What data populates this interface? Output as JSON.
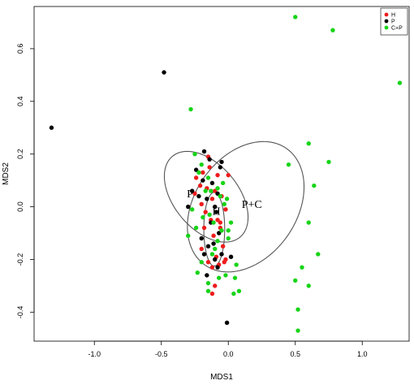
{
  "chart_data": {
    "type": "scatter",
    "xlabel": "MDS1",
    "ylabel": "MDS2",
    "xlim": [
      -1.45,
      1.35
    ],
    "ylim": [
      -0.51,
      0.76
    ],
    "x_ticks": [
      -1.0,
      -0.5,
      0.0,
      0.5,
      1.0
    ],
    "x_tick_labels": [
      "-1.0",
      "-0.5",
      "0.0",
      "0.5",
      "1.0"
    ],
    "y_ticks": [
      -0.4,
      -0.2,
      0.0,
      0.2,
      0.4,
      0.6
    ],
    "y_tick_labels": [
      "-0.4",
      "-0.2",
      "0.0",
      "0.2",
      "0.4",
      "0.6"
    ],
    "grid": false,
    "legend_position": "top-right",
    "series": [
      {
        "name": "H",
        "color": "#ee1c1c",
        "points": [
          [
            -0.24,
            0.11
          ],
          [
            -0.21,
            0.08
          ],
          [
            -0.19,
            0.13
          ],
          [
            -0.16,
            0.07
          ],
          [
            -0.14,
            0.15
          ],
          [
            -0.12,
            0.03
          ],
          [
            -0.1,
            0.06
          ],
          [
            -0.08,
            0.12
          ],
          [
            -0.25,
            0.05
          ],
          [
            -0.2,
            0.01
          ],
          [
            -0.17,
            -0.02
          ],
          [
            -0.13,
            -0.05
          ],
          [
            -0.15,
            0.19
          ],
          [
            -0.05,
            0.04
          ],
          [
            -0.02,
            -0.01
          ],
          [
            0.0,
            0.12
          ],
          [
            -0.11,
            -0.11
          ],
          [
            -0.06,
            -0.08
          ],
          [
            -0.04,
            -0.15
          ],
          [
            -0.09,
            -0.19
          ],
          [
            -0.2,
            -0.16
          ],
          [
            -0.15,
            -0.21
          ],
          [
            -0.12,
            -0.23
          ],
          [
            -0.07,
            -0.22
          ],
          [
            -0.1,
            -0.3
          ],
          [
            -0.03,
            -0.21
          ],
          [
            -0.06,
            -0.06
          ],
          [
            -0.18,
            -0.08
          ],
          [
            -0.02,
            -0.2
          ],
          [
            -0.08,
            -0.05
          ],
          [
            -0.12,
            -0.33
          ]
        ]
      },
      {
        "name": "P",
        "color": "#000000",
        "points": [
          [
            -1.32,
            0.3
          ],
          [
            -0.48,
            0.51
          ],
          [
            -0.3,
            0.0
          ],
          [
            -0.27,
            0.06
          ],
          [
            -0.24,
            0.14
          ],
          [
            -0.22,
            0.04
          ],
          [
            -0.19,
            0.1
          ],
          [
            -0.18,
            0.21
          ],
          [
            -0.16,
            0.03
          ],
          [
            -0.14,
            0.18
          ],
          [
            -0.12,
            0.09
          ],
          [
            -0.1,
            0.0
          ],
          [
            -0.08,
            0.05
          ],
          [
            -0.06,
            0.15
          ],
          [
            -0.05,
            0.17
          ],
          [
            -0.09,
            -0.02
          ],
          [
            -0.07,
            -0.1
          ],
          [
            -0.11,
            -0.14
          ],
          [
            -0.13,
            -0.06
          ],
          [
            -0.1,
            -0.2
          ],
          [
            -0.18,
            -0.18
          ],
          [
            -0.2,
            -0.12
          ],
          [
            -0.16,
            -0.26
          ],
          [
            -0.05,
            -0.18
          ],
          [
            0.02,
            -0.19
          ],
          [
            -0.01,
            -0.44
          ],
          [
            -0.08,
            -0.23
          ],
          [
            -0.15,
            -0.15
          ]
        ]
      },
      {
        "name": "C+P",
        "color": "#18d418",
        "points": [
          [
            0.5,
            0.72
          ],
          [
            0.78,
            0.67
          ],
          [
            1.28,
            0.47
          ],
          [
            -0.28,
            0.37
          ],
          [
            0.6,
            0.24
          ],
          [
            0.75,
            0.17
          ],
          [
            0.45,
            0.16
          ],
          [
            0.64,
            0.08
          ],
          [
            0.6,
            -0.06
          ],
          [
            0.67,
            -0.18
          ],
          [
            0.55,
            -0.23
          ],
          [
            0.5,
            -0.28
          ],
          [
            0.6,
            -0.3
          ],
          [
            0.52,
            -0.39
          ],
          [
            0.52,
            -0.47
          ],
          [
            -0.25,
            0.2
          ],
          [
            -0.2,
            0.16
          ],
          [
            -0.22,
            0.13
          ],
          [
            -0.17,
            0.06
          ],
          [
            -0.15,
            0.11
          ],
          [
            -0.13,
            0.06
          ],
          [
            -0.08,
            0.07
          ],
          [
            -0.06,
            0.04
          ],
          [
            -0.04,
            0.09
          ],
          [
            -0.03,
            0.01
          ],
          [
            -0.27,
            -0.01
          ],
          [
            -0.24,
            -0.08
          ],
          [
            -0.3,
            -0.11
          ],
          [
            -0.19,
            -0.04
          ],
          [
            -0.14,
            -0.03
          ],
          [
            -0.11,
            -0.06
          ],
          [
            -0.08,
            -0.13
          ],
          [
            -0.05,
            -0.09
          ],
          [
            -0.1,
            -0.16
          ],
          [
            -0.07,
            -0.27
          ],
          [
            -0.12,
            -0.18
          ],
          [
            -0.2,
            -0.21
          ],
          [
            -0.23,
            -0.25
          ],
          [
            -0.15,
            -0.29
          ],
          [
            0.0,
            -0.12
          ],
          [
            0.05,
            -0.27
          ],
          [
            0.06,
            -0.22
          ],
          [
            0.0,
            -0.09
          ],
          [
            -0.02,
            -0.26
          ],
          [
            -0.15,
            -0.32
          ],
          [
            0.08,
            -0.32
          ],
          [
            0.04,
            -0.33
          ],
          [
            -0.01,
            0.03
          ],
          [
            0.02,
            -0.06
          ]
        ]
      }
    ],
    "ellipses": [
      {
        "label": "P",
        "cx": -0.165,
        "cy": 0.038,
        "rx": 0.24,
        "ry": 0.2,
        "angle_deg": 40
      },
      {
        "label": "H",
        "cx": -0.105,
        "cy": -0.085,
        "rx": 0.078,
        "ry": 0.14,
        "angle_deg": 0
      },
      {
        "label": "P+C",
        "cx": 0.13,
        "cy": 0.0,
        "rx": 0.38,
        "ry": 0.27,
        "angle_deg": -35
      }
    ],
    "annotations": [
      {
        "text": "P",
        "x": -0.31,
        "y": 0.035
      },
      {
        "text": "H",
        "x": -0.12,
        "y": -0.03
      },
      {
        "text": "P+C",
        "x": 0.1,
        "y": -0.005
      }
    ]
  }
}
